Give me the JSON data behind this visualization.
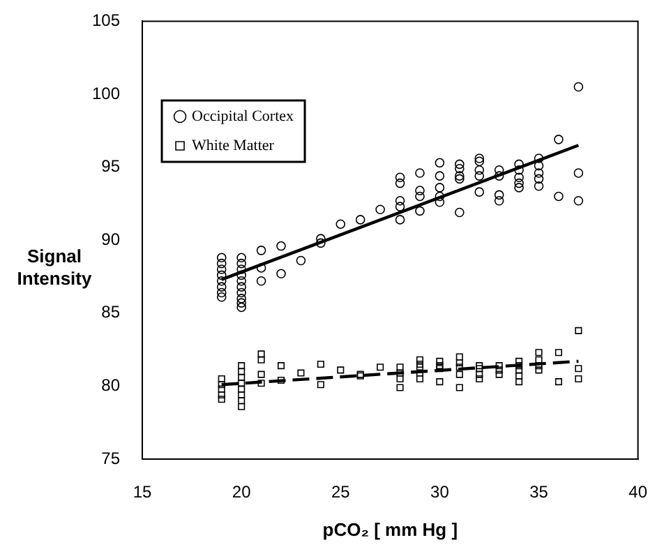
{
  "chart_data": {
    "type": "scatter",
    "xlabel": "pCO₂ [ mm Hg ]",
    "ylabel": "Signal Intensity",
    "xlim": [
      15,
      40
    ],
    "xticks": [
      15,
      20,
      25,
      30,
      35,
      40
    ],
    "ylim": [
      75,
      105
    ],
    "yticks": [
      75,
      80,
      85,
      90,
      95,
      100,
      105
    ],
    "grid": false,
    "legend": "top left",
    "series": [
      {
        "name": "Occipital Cortex",
        "type": "scatter",
        "marker": "circle",
        "color": "#000000",
        "x": [
          19,
          19,
          19,
          19,
          19,
          19,
          19,
          19,
          20,
          20,
          20,
          20,
          20,
          20,
          20,
          20,
          20,
          20,
          21,
          21,
          21,
          22,
          22,
          23,
          24,
          24,
          25,
          26,
          27,
          28,
          28,
          28,
          28,
          28,
          29,
          29,
          29,
          29,
          30,
          30,
          30,
          30,
          30,
          31,
          31,
          31,
          31,
          31,
          32,
          32,
          32,
          32,
          32,
          33,
          33,
          33,
          33,
          34,
          34,
          34,
          34,
          34,
          35,
          35,
          35,
          35,
          35,
          36,
          36,
          37,
          37,
          37
        ],
        "values": [
          88.8,
          88.4,
          88,
          87.6,
          87.2,
          86.8,
          86.4,
          86.1,
          88.8,
          88.4,
          88,
          87.6,
          87.2,
          86.8,
          86.4,
          86,
          85.7,
          85.4,
          89.3,
          88.1,
          87.2,
          89.6,
          87.7,
          88.6,
          90.1,
          89.8,
          91.1,
          91.4,
          92.1,
          94.3,
          93.9,
          92.7,
          92.3,
          91.4,
          94.6,
          93.4,
          93,
          92,
          95.3,
          94.4,
          93.6,
          93,
          92.6,
          95.2,
          94.9,
          94.4,
          94.2,
          91.9,
          95.6,
          95.4,
          94.8,
          94.4,
          93.3,
          94.8,
          94.4,
          93.1,
          92.7,
          95.2,
          94.8,
          94.3,
          93.9,
          93.6,
          95.6,
          95.1,
          94.6,
          94.2,
          93.7,
          96.9,
          93,
          100.5,
          94.6,
          92.7
        ]
      },
      {
        "type": "line",
        "marker": "none",
        "line_style": "solid",
        "color": "#000000",
        "x": [
          19,
          37
        ],
        "values": [
          87.3,
          96.5
        ]
      },
      {
        "name": "White Matter",
        "type": "scatter",
        "marker": "square",
        "color": "#000000",
        "x": [
          19,
          19,
          19,
          19,
          19,
          20,
          20,
          20,
          20,
          20,
          20,
          20,
          20,
          21,
          21,
          21,
          21,
          22,
          22,
          23,
          24,
          24,
          25,
          26,
          26,
          27,
          28,
          28,
          28,
          28,
          29,
          29,
          29,
          29,
          29,
          30,
          30,
          30,
          30,
          31,
          31,
          31,
          31,
          31,
          32,
          32,
          32,
          32,
          33,
          33,
          33,
          34,
          34,
          34,
          34,
          34,
          35,
          35,
          35,
          35,
          36,
          36,
          37,
          37,
          37
        ],
        "values": [
          80.5,
          80.1,
          79.8,
          79.4,
          79.1,
          81.4,
          81,
          80.6,
          80.2,
          79.8,
          79.4,
          79,
          78.6,
          82.2,
          81.8,
          80.8,
          80.2,
          81.4,
          80.4,
          80.9,
          81.5,
          80.1,
          81.1,
          80.8,
          80.7,
          81.3,
          81.3,
          80.9,
          80.5,
          79.9,
          81.8,
          81.5,
          81.3,
          80.9,
          80.5,
          81.7,
          81.4,
          81.2,
          80.3,
          82,
          81.6,
          81.3,
          80.8,
          79.9,
          81.4,
          81.2,
          80.8,
          80.5,
          81.4,
          81.1,
          80.8,
          81.7,
          81.4,
          81.1,
          80.7,
          80.3,
          82.3,
          81.8,
          81.4,
          81.1,
          82.3,
          80.3,
          83.8,
          81.2,
          80.5
        ]
      },
      {
        "type": "line",
        "marker": "none",
        "line_style": "dashed",
        "color": "#000000",
        "x": [
          19,
          37
        ],
        "values": [
          80.1,
          81.7
        ]
      }
    ]
  }
}
